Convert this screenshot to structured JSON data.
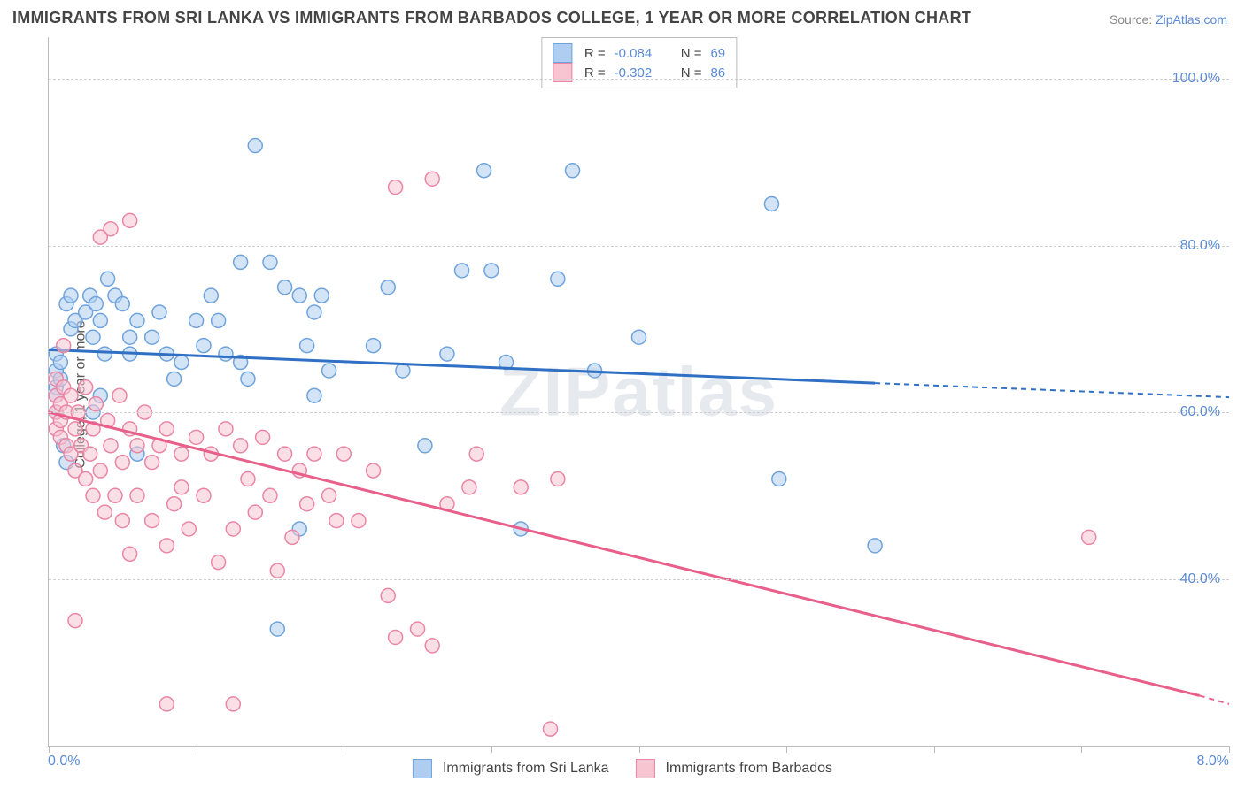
{
  "title": "IMMIGRANTS FROM SRI LANKA VS IMMIGRANTS FROM BARBADOS COLLEGE, 1 YEAR OR MORE CORRELATION CHART",
  "source_prefix": "Source: ",
  "source_link": "ZipAtlas.com",
  "ylabel": "College, 1 year or more",
  "watermark": "ZIPatlas",
  "chart": {
    "type": "scatter",
    "xlim": [
      0.0,
      8.0
    ],
    "ylim": [
      20.0,
      105.0
    ],
    "x_tick_labels": {
      "min": "0.0%",
      "max": "8.0%"
    },
    "x_minor_ticks": [
      0,
      1,
      2,
      3,
      4,
      5,
      6,
      7,
      8
    ],
    "y_gridlines": [
      40.0,
      60.0,
      80.0,
      100.0
    ],
    "y_tick_labels": [
      "40.0%",
      "60.0%",
      "80.0%",
      "100.0%"
    ],
    "background_color": "#ffffff",
    "grid_color": "#cfcfcf",
    "axis_color": "#bbbbbb",
    "tick_label_color": "#5b8bd4",
    "marker_radius": 8,
    "marker_opacity": 0.55,
    "series": [
      {
        "name": "Immigrants from Sri Lanka",
        "color_fill": "#aecdf0",
        "color_stroke": "#6fa3db",
        "trend_color": "#2f6fc4",
        "R": "-0.084",
        "N": "69",
        "trend": {
          "x1": 0.0,
          "y1": 67.5,
          "x2": 5.6,
          "y2": 63.5,
          "x2_ext": 8.0,
          "y2_ext": 61.8
        },
        "points": [
          [
            0.05,
            63
          ],
          [
            0.05,
            60
          ],
          [
            0.05,
            65
          ],
          [
            0.05,
            62
          ],
          [
            0.05,
            67
          ],
          [
            0.08,
            64
          ],
          [
            0.08,
            66
          ],
          [
            0.12,
            73
          ],
          [
            0.15,
            70
          ],
          [
            0.15,
            74
          ],
          [
            0.18,
            71
          ],
          [
            0.1,
            56
          ],
          [
            0.12,
            54
          ],
          [
            0.25,
            72
          ],
          [
            0.28,
            74
          ],
          [
            0.3,
            69
          ],
          [
            0.32,
            73
          ],
          [
            0.35,
            71
          ],
          [
            0.38,
            67
          ],
          [
            0.3,
            60
          ],
          [
            0.35,
            62
          ],
          [
            0.4,
            76
          ],
          [
            0.45,
            74
          ],
          [
            0.5,
            73
          ],
          [
            0.55,
            67
          ],
          [
            0.55,
            69
          ],
          [
            0.6,
            71
          ],
          [
            0.7,
            69
          ],
          [
            0.75,
            72
          ],
          [
            0.8,
            67
          ],
          [
            0.85,
            64
          ],
          [
            0.6,
            55
          ],
          [
            0.9,
            66
          ],
          [
            1.0,
            71
          ],
          [
            1.05,
            68
          ],
          [
            1.1,
            74
          ],
          [
            1.15,
            71
          ],
          [
            1.2,
            67
          ],
          [
            1.3,
            66
          ],
          [
            1.35,
            64
          ],
          [
            1.3,
            78
          ],
          [
            1.4,
            92
          ],
          [
            1.5,
            78
          ],
          [
            1.6,
            75
          ],
          [
            1.7,
            74
          ],
          [
            1.75,
            68
          ],
          [
            1.8,
            62
          ],
          [
            1.8,
            72
          ],
          [
            1.85,
            74
          ],
          [
            1.9,
            65
          ],
          [
            1.7,
            46
          ],
          [
            2.2,
            68
          ],
          [
            2.3,
            75
          ],
          [
            2.4,
            65
          ],
          [
            2.55,
            56
          ],
          [
            2.7,
            67
          ],
          [
            2.8,
            77
          ],
          [
            2.95,
            89
          ],
          [
            3.0,
            77
          ],
          [
            3.1,
            66
          ],
          [
            3.2,
            46
          ],
          [
            3.45,
            76
          ],
          [
            3.55,
            89
          ],
          [
            3.7,
            65
          ],
          [
            4.0,
            69
          ],
          [
            4.9,
            85
          ],
          [
            4.95,
            52
          ],
          [
            5.6,
            44
          ],
          [
            1.55,
            34
          ]
        ]
      },
      {
        "name": "Immigrants from Barbados",
        "color_fill": "#f7c4d2",
        "color_stroke": "#e986a5",
        "trend_color": "#e75f8a",
        "R": "-0.302",
        "N": "86",
        "trend": {
          "x1": 0.0,
          "y1": 60.0,
          "x2": 7.8,
          "y2": 26.0,
          "x2_ext": 8.0,
          "y2_ext": 25.0
        },
        "points": [
          [
            0.05,
            58
          ],
          [
            0.05,
            60
          ],
          [
            0.05,
            62
          ],
          [
            0.05,
            64
          ],
          [
            0.08,
            57
          ],
          [
            0.08,
            59
          ],
          [
            0.08,
            61
          ],
          [
            0.1,
            63
          ],
          [
            0.12,
            56
          ],
          [
            0.12,
            60
          ],
          [
            0.15,
            62
          ],
          [
            0.15,
            55
          ],
          [
            0.18,
            58
          ],
          [
            0.18,
            53
          ],
          [
            0.2,
            60
          ],
          [
            0.22,
            56
          ],
          [
            0.25,
            52
          ],
          [
            0.25,
            63
          ],
          [
            0.28,
            55
          ],
          [
            0.3,
            50
          ],
          [
            0.3,
            58
          ],
          [
            0.32,
            61
          ],
          [
            0.35,
            53
          ],
          [
            0.38,
            48
          ],
          [
            0.4,
            59
          ],
          [
            0.42,
            56
          ],
          [
            0.45,
            50
          ],
          [
            0.48,
            62
          ],
          [
            0.5,
            54
          ],
          [
            0.5,
            47
          ],
          [
            0.55,
            58
          ],
          [
            0.55,
            43
          ],
          [
            0.6,
            56
          ],
          [
            0.6,
            50
          ],
          [
            0.65,
            60
          ],
          [
            0.7,
            47
          ],
          [
            0.7,
            54
          ],
          [
            0.75,
            56
          ],
          [
            0.8,
            44
          ],
          [
            0.8,
            58
          ],
          [
            0.85,
            49
          ],
          [
            0.9,
            55
          ],
          [
            0.9,
            51
          ],
          [
            0.95,
            46
          ],
          [
            1.0,
            57
          ],
          [
            1.05,
            50
          ],
          [
            1.1,
            55
          ],
          [
            1.15,
            42
          ],
          [
            1.2,
            58
          ],
          [
            1.25,
            46
          ],
          [
            1.3,
            56
          ],
          [
            1.35,
            52
          ],
          [
            1.4,
            48
          ],
          [
            1.45,
            57
          ],
          [
            1.5,
            50
          ],
          [
            1.55,
            41
          ],
          [
            1.6,
            55
          ],
          [
            1.65,
            45
          ],
          [
            1.7,
            53
          ],
          [
            1.75,
            49
          ],
          [
            1.8,
            55
          ],
          [
            1.9,
            50
          ],
          [
            1.95,
            47
          ],
          [
            2.0,
            55
          ],
          [
            2.1,
            47
          ],
          [
            2.2,
            53
          ],
          [
            2.3,
            38
          ],
          [
            2.35,
            33
          ],
          [
            2.5,
            34
          ],
          [
            2.6,
            32
          ],
          [
            2.7,
            49
          ],
          [
            2.85,
            51
          ],
          [
            2.9,
            55
          ],
          [
            3.2,
            51
          ],
          [
            3.4,
            22
          ],
          [
            3.45,
            52
          ],
          [
            0.42,
            82
          ],
          [
            0.55,
            83
          ],
          [
            0.35,
            81
          ],
          [
            2.35,
            87
          ],
          [
            2.6,
            88
          ],
          [
            0.8,
            25
          ],
          [
            1.25,
            25
          ],
          [
            0.18,
            35
          ],
          [
            7.05,
            45
          ],
          [
            0.1,
            68
          ]
        ]
      }
    ]
  },
  "legend_top_labels": {
    "R": "R =",
    "N": "N ="
  },
  "legend_bottom": [
    "Immigrants from Sri Lanka",
    "Immigrants from Barbados"
  ]
}
